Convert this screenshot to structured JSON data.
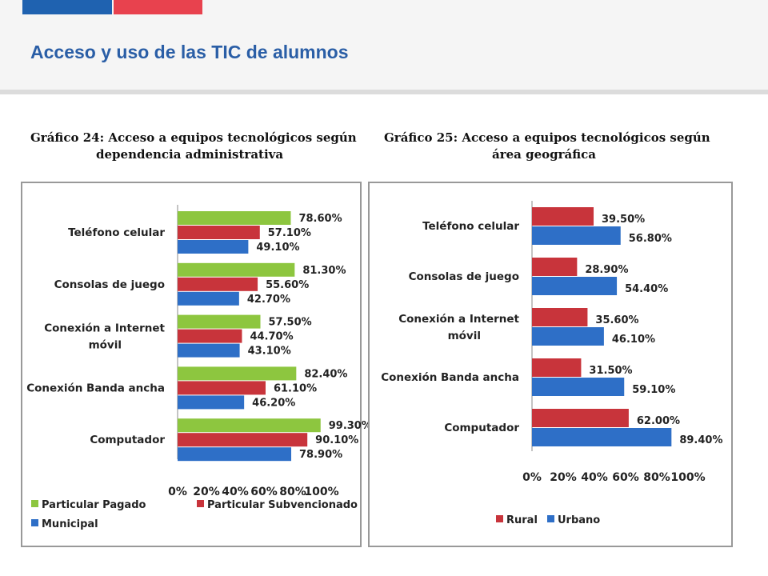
{
  "header": {
    "title": "Acceso y uso de las TIC de alumnos"
  },
  "colors": {
    "header_blue": "#1f62b0",
    "header_red": "#e8424e",
    "title_blue": "#2a5ea6",
    "green": "#8dc63f",
    "red": "#c8343b",
    "blue": "#2e6fc7"
  },
  "chart_data": [
    {
      "type": "bar",
      "orientation": "horizontal",
      "title_line1": "Gráfico 24: Acceso a equipos tecnológicos según",
      "title_line2": "dependencia administrativa",
      "categories": [
        "Teléfono celular",
        "Consolas de juego",
        "Conexión a Internet móvil",
        "Conexión Banda ancha",
        "Computador"
      ],
      "category_lines": [
        [
          "Teléfono celular"
        ],
        [
          "Consolas de juego"
        ],
        [
          "Conexión a Internet",
          "móvil"
        ],
        [
          "Conexión Banda ancha"
        ],
        [
          "Computador"
        ]
      ],
      "series": [
        {
          "name": "Particular Pagado",
          "color": "#8dc63f",
          "values": [
            78.6,
            81.3,
            57.5,
            82.4,
            99.3
          ],
          "labels": [
            "78.60%",
            "81.30%",
            "57.50%",
            "82.40%",
            "99.30%"
          ]
        },
        {
          "name": "Particular Subvencionado",
          "color": "#c8343b",
          "values": [
            57.1,
            55.6,
            44.7,
            61.1,
            90.1
          ],
          "labels": [
            "57.10%",
            "55.60%",
            "44.70%",
            "61.10%",
            "90.10%"
          ]
        },
        {
          "name": "Municipal",
          "color": "#2e6fc7",
          "values": [
            49.1,
            42.7,
            43.1,
            46.2,
            78.9
          ],
          "labels": [
            "49.10%",
            "42.70%",
            "43.10%",
            "46.20%",
            "78.90%"
          ]
        }
      ],
      "xlim": [
        0,
        100
      ],
      "xticks": [
        "0%",
        "20%",
        "40%",
        "60%",
        "80%",
        "100%"
      ],
      "legend_position": "bottom"
    },
    {
      "type": "bar",
      "orientation": "horizontal",
      "title_line1": "Gráfico 25: Acceso a equipos tecnológicos según",
      "title_line2": "área geográfica",
      "categories": [
        "Teléfono celular",
        "Consolas de juego",
        "Conexión a Internet móvil",
        "Conexión Banda ancha",
        "Computador"
      ],
      "category_lines": [
        [
          "Teléfono celular"
        ],
        [
          "Consolas de juego"
        ],
        [
          "Conexión a Internet",
          "móvil"
        ],
        [
          "Conexión Banda ancha"
        ],
        [
          "Computador"
        ]
      ],
      "series": [
        {
          "name": "Rural",
          "color": "#c8343b",
          "values": [
            39.5,
            28.9,
            35.6,
            31.5,
            62.0
          ],
          "labels": [
            "39.50%",
            "28.90%",
            "35.60%",
            "31.50%",
            "62.00%"
          ]
        },
        {
          "name": "Urbano",
          "color": "#2e6fc7",
          "values": [
            56.8,
            54.4,
            46.1,
            59.1,
            89.4
          ],
          "labels": [
            "56.80%",
            "54.40%",
            "46.10%",
            "59.10%",
            "89.40%"
          ]
        }
      ],
      "xlim": [
        0,
        100
      ],
      "xticks": [
        "0%",
        "20%",
        "40%",
        "60%",
        "80%",
        "100%"
      ],
      "legend_position": "bottom"
    }
  ]
}
